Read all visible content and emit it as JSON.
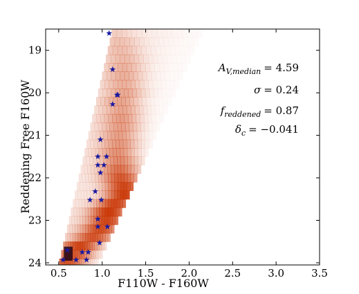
{
  "chart_data": {
    "type": "scatter",
    "title": "",
    "xlabel": "F110W - F160W",
    "ylabel": "Reddening Free F160W",
    "xlim": [
      0.35,
      3.5
    ],
    "ylim": [
      24.05,
      18.5
    ],
    "y_inverted": true,
    "x_ticks": [
      {
        "value": 0.5,
        "label": "0.5"
      },
      {
        "value": 1.0,
        "label": "1.0"
      },
      {
        "value": 1.5,
        "label": "1.5"
      },
      {
        "value": 2.0,
        "label": "2.0"
      },
      {
        "value": 2.5,
        "label": "2.5"
      },
      {
        "value": 3.0,
        "label": "3.0"
      },
      {
        "value": 3.5,
        "label": "3.5"
      }
    ],
    "y_ticks": [
      {
        "value": 19,
        "label": "19"
      },
      {
        "value": 20,
        "label": "20"
      },
      {
        "value": 21,
        "label": "21"
      },
      {
        "value": 22,
        "label": "22"
      },
      {
        "value": 23,
        "label": "23"
      },
      {
        "value": 24,
        "label": "24"
      }
    ],
    "grid": false,
    "heatmap_color": "#c83200",
    "star_color": "#1a1aa0",
    "model_hess_diagram": [
      {
        "y": 18.6,
        "x": 1.13,
        "a": 0.12
      },
      {
        "y": 18.8,
        "x": 1.2,
        "a": 0.18
      },
      {
        "y": 19.0,
        "x": 1.22,
        "a": 0.2
      },
      {
        "y": 19.2,
        "x": 1.25,
        "a": 0.22
      },
      {
        "y": 19.4,
        "x": 1.25,
        "a": 0.26
      },
      {
        "y": 19.6,
        "x": 1.25,
        "a": 0.28
      },
      {
        "y": 19.8,
        "x": 1.25,
        "a": 0.28
      },
      {
        "y": 20.0,
        "x": 1.26,
        "a": 0.32
      },
      {
        "y": 20.2,
        "x": 1.22,
        "a": 0.34
      },
      {
        "y": 20.4,
        "x": 1.23,
        "a": 0.34
      },
      {
        "y": 20.6,
        "x": 1.22,
        "a": 0.38
      },
      {
        "y": 20.8,
        "x": 1.22,
        "a": 0.38
      },
      {
        "y": 21.0,
        "x": 1.2,
        "a": 0.38
      },
      {
        "y": 21.2,
        "x": 1.2,
        "a": 0.42
      },
      {
        "y": 21.4,
        "x": 1.18,
        "a": 0.45
      },
      {
        "y": 21.6,
        "x": 1.2,
        "a": 0.5
      },
      {
        "y": 21.8,
        "x": 1.2,
        "a": 0.62
      },
      {
        "y": 22.0,
        "x": 1.22,
        "a": 0.75
      },
      {
        "y": 22.2,
        "x": 1.25,
        "a": 0.85
      },
      {
        "y": 22.4,
        "x": 1.25,
        "a": 0.9
      },
      {
        "y": 22.6,
        "x": 1.15,
        "a": 0.85
      },
      {
        "y": 22.8,
        "x": 1.08,
        "a": 0.9
      },
      {
        "y": 23.0,
        "x": 1.05,
        "a": 0.85
      },
      {
        "y": 23.2,
        "x": 0.98,
        "a": 0.8
      },
      {
        "y": 23.4,
        "x": 0.9,
        "a": 0.75
      },
      {
        "y": 23.6,
        "x": 0.75,
        "a": 0.8
      },
      {
        "y": 23.8,
        "x": 0.68,
        "a": 0.7
      },
      {
        "y": 24.0,
        "x": 0.6,
        "a": 0.7
      }
    ],
    "stars": [
      {
        "x": 1.08,
        "y": 18.6
      },
      {
        "x": 1.12,
        "y": 19.45
      },
      {
        "x": 1.17,
        "y": 20.05
      },
      {
        "x": 1.18,
        "y": 20.05
      },
      {
        "x": 1.12,
        "y": 20.27
      },
      {
        "x": 0.98,
        "y": 21.1
      },
      {
        "x": 0.95,
        "y": 21.5
      },
      {
        "x": 1.05,
        "y": 21.5
      },
      {
        "x": 0.95,
        "y": 21.7
      },
      {
        "x": 1.02,
        "y": 21.7
      },
      {
        "x": 0.98,
        "y": 21.88
      },
      {
        "x": 0.92,
        "y": 22.32
      },
      {
        "x": 0.86,
        "y": 22.52
      },
      {
        "x": 0.99,
        "y": 22.52
      },
      {
        "x": 0.95,
        "y": 22.97
      },
      {
        "x": 0.95,
        "y": 23.15
      },
      {
        "x": 1.06,
        "y": 23.15
      },
      {
        "x": 0.97,
        "y": 23.53
      },
      {
        "x": 0.6,
        "y": 23.7
      },
      {
        "x": 0.77,
        "y": 23.75
      },
      {
        "x": 0.84,
        "y": 23.75
      },
      {
        "x": 0.55,
        "y": 23.93
      },
      {
        "x": 0.7,
        "y": 23.93
      },
      {
        "x": 0.82,
        "y": 23.93
      }
    ],
    "annotations": [
      {
        "id": "av",
        "symbol": "A",
        "sub": "V,median",
        "value": "= 4.59"
      },
      {
        "id": "sigma",
        "symbol": "σ",
        "sub": "",
        "value": "= 0.24"
      },
      {
        "id": "fred",
        "symbol": "f",
        "sub": "reddened",
        "value": "= 0.87"
      },
      {
        "id": "delta",
        "symbol": "δ",
        "sub": "c",
        "value": "= −0.041"
      }
    ]
  }
}
